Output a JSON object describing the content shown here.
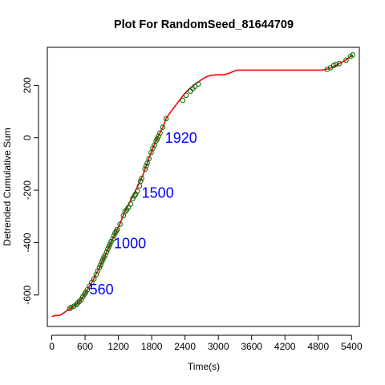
{
  "chart_data": {
    "type": "line",
    "title": "Plot For RandomSeed_81644709",
    "xlabel": "Time(s)",
    "ylabel": "Detrended Cumulative Sum",
    "xlim": [
      -80,
      5540
    ],
    "ylim": [
      -720,
      345
    ],
    "x_ticks": [
      0,
      600,
      1200,
      1800,
      2400,
      3000,
      3600,
      4200,
      4800,
      5400
    ],
    "y_ticks": [
      -600,
      -400,
      -200,
      0,
      200
    ],
    "grid": false,
    "line_color": "#ff0000",
    "marker_color": "#006400",
    "annotation_color": "#0000ff",
    "series": [
      {
        "values_x": [
          0,
          60,
          140,
          220,
          300,
          380,
          440,
          500,
          560,
          620,
          680,
          740,
          800,
          860,
          920,
          980,
          1040,
          1100,
          1160,
          1220,
          1280,
          1340,
          1400,
          1460,
          1520,
          1580,
          1640,
          1700,
          1760,
          1820,
          1880,
          1940,
          2000,
          2060,
          2140,
          2220,
          2300,
          2380,
          2460,
          2540,
          2620,
          2700,
          2780,
          2860,
          2940,
          3020,
          3100,
          3180,
          3260,
          3340,
          3500,
          3700,
          3900,
          4100,
          4300,
          4500,
          4700,
          4880,
          4960,
          5040,
          5100,
          5160,
          5220,
          5280,
          5330,
          5380,
          5420
        ],
        "values_y": [
          -682,
          -678,
          -678,
          -668,
          -655,
          -644,
          -636,
          -625,
          -607,
          -588,
          -566,
          -545,
          -520,
          -495,
          -467,
          -440,
          -412,
          -385,
          -358,
          -333,
          -300,
          -272,
          -248,
          -222,
          -198,
          -170,
          -143,
          -108,
          -72,
          -40,
          -10,
          15,
          40,
          73,
          98,
          120,
          143,
          165,
          183,
          198,
          210,
          222,
          232,
          238,
          240,
          240,
          240,
          245,
          252,
          258,
          258,
          258,
          258,
          258,
          258,
          258,
          258,
          258,
          262,
          268,
          274,
          280,
          288,
          294,
          302,
          310,
          316
        ]
      }
    ],
    "markers": [
      {
        "x": 320,
        "y": -652
      },
      {
        "x": 350,
        "y": -647
      },
      {
        "x": 400,
        "y": -643
      },
      {
        "x": 440,
        "y": -637
      },
      {
        "x": 470,
        "y": -630
      },
      {
        "x": 500,
        "y": -624
      },
      {
        "x": 530,
        "y": -617
      },
      {
        "x": 560,
        "y": -607
      },
      {
        "x": 590,
        "y": -597
      },
      {
        "x": 610,
        "y": -590
      },
      {
        "x": 640,
        "y": -580
      },
      {
        "x": 680,
        "y": -566
      },
      {
        "x": 720,
        "y": -552
      },
      {
        "x": 760,
        "y": -538
      },
      {
        "x": 800,
        "y": -522
      },
      {
        "x": 830,
        "y": -508
      },
      {
        "x": 860,
        "y": -495
      },
      {
        "x": 880,
        "y": -486
      },
      {
        "x": 900,
        "y": -474
      },
      {
        "x": 920,
        "y": -466
      },
      {
        "x": 940,
        "y": -456
      },
      {
        "x": 960,
        "y": -448
      },
      {
        "x": 990,
        "y": -436
      },
      {
        "x": 1010,
        "y": -424
      },
      {
        "x": 1030,
        "y": -414
      },
      {
        "x": 1050,
        "y": -406
      },
      {
        "x": 1070,
        "y": -396
      },
      {
        "x": 1100,
        "y": -386
      },
      {
        "x": 1120,
        "y": -374
      },
      {
        "x": 1140,
        "y": -364
      },
      {
        "x": 1160,
        "y": -357
      },
      {
        "x": 1180,
        "y": -350
      },
      {
        "x": 1230,
        "y": -330
      },
      {
        "x": 1290,
        "y": -297
      },
      {
        "x": 1320,
        "y": -282
      },
      {
        "x": 1350,
        "y": -275
      },
      {
        "x": 1380,
        "y": -266
      },
      {
        "x": 1420,
        "y": -253
      },
      {
        "x": 1460,
        "y": -232
      },
      {
        "x": 1490,
        "y": -222
      },
      {
        "x": 1510,
        "y": -215
      },
      {
        "x": 1540,
        "y": -204
      },
      {
        "x": 1580,
        "y": -184
      },
      {
        "x": 1600,
        "y": -166
      },
      {
        "x": 1620,
        "y": -155
      },
      {
        "x": 1680,
        "y": -120
      },
      {
        "x": 1700,
        "y": -108
      },
      {
        "x": 1720,
        "y": -97
      },
      {
        "x": 1750,
        "y": -80
      },
      {
        "x": 1790,
        "y": -56
      },
      {
        "x": 1820,
        "y": -40
      },
      {
        "x": 1850,
        "y": -28
      },
      {
        "x": 1880,
        "y": -12
      },
      {
        "x": 1900,
        "y": -4
      },
      {
        "x": 1920,
        "y": 5
      },
      {
        "x": 1950,
        "y": 18
      },
      {
        "x": 2000,
        "y": 40
      },
      {
        "x": 2060,
        "y": 73
      },
      {
        "x": 2360,
        "y": 143
      },
      {
        "x": 2420,
        "y": 162
      },
      {
        "x": 2500,
        "y": 178
      },
      {
        "x": 2540,
        "y": 188
      },
      {
        "x": 2580,
        "y": 196
      },
      {
        "x": 2640,
        "y": 205
      },
      {
        "x": 4960,
        "y": 261
      },
      {
        "x": 5020,
        "y": 267
      },
      {
        "x": 5080,
        "y": 276
      },
      {
        "x": 5120,
        "y": 280
      },
      {
        "x": 5180,
        "y": 283
      },
      {
        "x": 5300,
        "y": 296
      },
      {
        "x": 5380,
        "y": 310
      },
      {
        "x": 5420,
        "y": 316
      }
    ],
    "annotations": [
      {
        "text": "560",
        "x": 680,
        "y": -583
      },
      {
        "text": "1000",
        "x": 1120,
        "y": -407
      },
      {
        "text": "1500",
        "x": 1620,
        "y": -215
      },
      {
        "text": "1920",
        "x": 2040,
        "y": -5
      }
    ]
  }
}
